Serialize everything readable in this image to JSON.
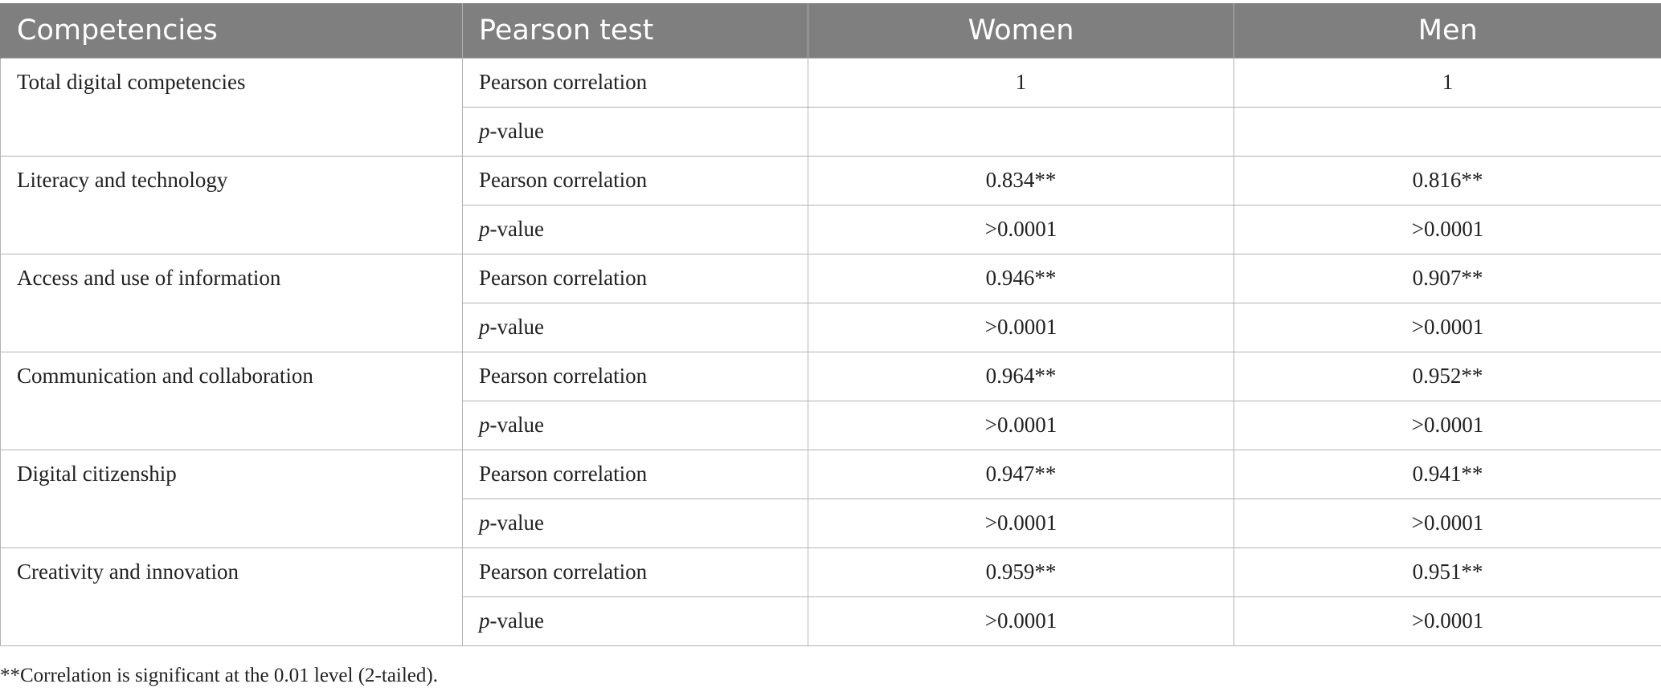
{
  "table": {
    "headers": {
      "competencies": "Competencies",
      "pearson_test": "Pearson test",
      "women": "Women",
      "men": "Men"
    },
    "labels": {
      "pearson_correlation": "Pearson correlation",
      "p_letter": "p",
      "p_suffix": "-value"
    },
    "rows": [
      {
        "competency": "Total digital competencies",
        "women_r": "1",
        "men_r": "1",
        "women_p": "",
        "men_p": ""
      },
      {
        "competency": "Literacy and technology",
        "women_r": "0.834**",
        "men_r": "0.816**",
        "women_p": ">0.0001",
        "men_p": ">0.0001"
      },
      {
        "competency": "Access and use of information",
        "women_r": "0.946**",
        "men_r": "0.907**",
        "women_p": ">0.0001",
        "men_p": ">0.0001"
      },
      {
        "competency": "Communication and collaboration",
        "women_r": "0.964**",
        "men_r": "0.952**",
        "women_p": ">0.0001",
        "men_p": ">0.0001"
      },
      {
        "competency": "Digital citizenship",
        "women_r": "0.947**",
        "men_r": "0.941**",
        "women_p": ">0.0001",
        "men_p": ">0.0001"
      },
      {
        "competency": "Creativity and innovation",
        "women_r": "0.959**",
        "men_r": "0.951**",
        "women_p": ">0.0001",
        "men_p": ">0.0001"
      }
    ]
  },
  "footnote": "**Correlation is significant at the 0.01 level (2-tailed)."
}
